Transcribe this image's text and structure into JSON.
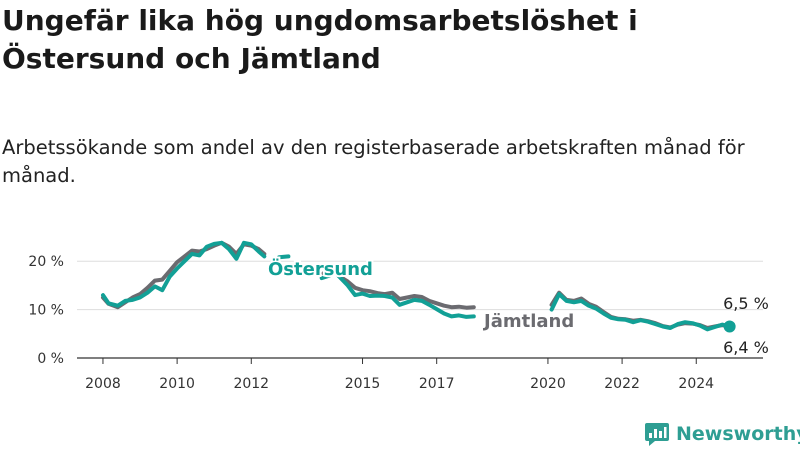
{
  "title": "Ungefär lika hög ungdomsarbetslöshet i Östersund och Jämtland",
  "subtitle": "Arbetssökande som andel av den registerbaserade arbetskraften månad för månad.",
  "brand": {
    "name": "Newsworthy"
  },
  "colors": {
    "ostersund": "#12a096",
    "jamtland": "#6b6b70",
    "grid": "#dddddd",
    "axis": "#333333",
    "brand": "#2e9e93"
  },
  "chart_data": {
    "type": "line",
    "title": "Ungefär lika hög ungdomsarbetslöshet i Östersund och Jämtland",
    "xlabel": "",
    "ylabel": "",
    "xlim": [
      2007.3,
      2025.8
    ],
    "ylim": [
      0,
      25
    ],
    "y_ticks": [
      {
        "value": 0,
        "label": "0 %"
      },
      {
        "value": 10,
        "label": "10 %"
      },
      {
        "value": 20,
        "label": "20 %"
      }
    ],
    "x_ticks": [
      {
        "value": 2008,
        "label": "2008"
      },
      {
        "value": 2010,
        "label": "2010"
      },
      {
        "value": 2012,
        "label": "2012"
      },
      {
        "value": 2015,
        "label": "2015"
      },
      {
        "value": 2017,
        "label": "2017"
      },
      {
        "value": 2020,
        "label": "2020"
      },
      {
        "value": 2022,
        "label": "2022"
      },
      {
        "value": 2024,
        "label": "2024"
      }
    ],
    "grid": "horizontal",
    "series": [
      {
        "name": "Jämtland",
        "label": "Jämtland",
        "segments": [
          [
            [
              2008.0,
              12.5
            ],
            [
              2008.15,
              11.2
            ],
            [
              2008.4,
              10.5
            ],
            [
              2008.6,
              11.5
            ],
            [
              2008.8,
              12.5
            ],
            [
              2009.0,
              13.2
            ],
            [
              2009.2,
              14.5
            ],
            [
              2009.4,
              16.0
            ],
            [
              2009.6,
              16.2
            ],
            [
              2009.8,
              18.0
            ],
            [
              2010.0,
              19.8
            ],
            [
              2010.2,
              21.0
            ],
            [
              2010.4,
              22.2
            ],
            [
              2010.6,
              22.0
            ],
            [
              2010.8,
              22.5
            ],
            [
              2011.0,
              23.2
            ],
            [
              2011.2,
              23.8
            ],
            [
              2011.4,
              23.0
            ],
            [
              2011.6,
              21.5
            ],
            [
              2011.8,
              23.5
            ],
            [
              2012.0,
              23.2
            ],
            [
              2012.2,
              22.5
            ],
            [
              2012.35,
              21.5
            ]
          ],
          [
            [
              2013.95,
              17.5
            ],
            [
              2014.2,
              17.6
            ]
          ],
          [
            [
              2014.35,
              17.0
            ],
            [
              2014.6,
              15.8
            ],
            [
              2014.8,
              14.5
            ],
            [
              2015.0,
              14.0
            ],
            [
              2015.2,
              13.8
            ],
            [
              2015.4,
              13.4
            ],
            [
              2015.6,
              13.2
            ],
            [
              2015.8,
              13.5
            ],
            [
              2016.0,
              12.2
            ],
            [
              2016.2,
              12.5
            ],
            [
              2016.4,
              12.8
            ],
            [
              2016.6,
              12.6
            ],
            [
              2016.8,
              11.8
            ],
            [
              2017.0,
              11.3
            ],
            [
              2017.2,
              10.8
            ],
            [
              2017.4,
              10.5
            ],
            [
              2017.6,
              10.6
            ],
            [
              2017.8,
              10.4
            ],
            [
              2018.0,
              10.5
            ]
          ],
          [
            [
              2020.1,
              11.0
            ],
            [
              2020.3,
              13.5
            ],
            [
              2020.5,
              12.0
            ],
            [
              2020.7,
              11.8
            ],
            [
              2020.9,
              12.3
            ],
            [
              2021.1,
              11.2
            ],
            [
              2021.3,
              10.6
            ],
            [
              2021.5,
              9.5
            ],
            [
              2021.7,
              8.5
            ],
            [
              2021.9,
              8.1
            ],
            [
              2022.1,
              8.0
            ],
            [
              2022.3,
              7.7
            ],
            [
              2022.5,
              7.9
            ],
            [
              2022.7,
              7.6
            ],
            [
              2022.9,
              7.2
            ],
            [
              2023.1,
              6.6
            ],
            [
              2023.3,
              6.3
            ],
            [
              2023.5,
              6.9
            ],
            [
              2023.7,
              7.2
            ],
            [
              2023.9,
              7.1
            ],
            [
              2024.1,
              6.8
            ],
            [
              2024.3,
              6.2
            ],
            [
              2024.5,
              6.5
            ],
            [
              2024.7,
              6.8
            ],
            [
              2024.9,
              6.4
            ]
          ]
        ]
      },
      {
        "name": "Östersund",
        "label": "Östersund",
        "segments": [
          [
            [
              2008.0,
              13.0
            ],
            [
              2008.15,
              11.3
            ],
            [
              2008.4,
              10.8
            ],
            [
              2008.6,
              11.8
            ],
            [
              2008.8,
              12.0
            ],
            [
              2009.0,
              12.5
            ],
            [
              2009.2,
              13.5
            ],
            [
              2009.4,
              14.8
            ],
            [
              2009.6,
              14.0
            ],
            [
              2009.8,
              16.8
            ],
            [
              2010.0,
              18.5
            ],
            [
              2010.2,
              20.0
            ],
            [
              2010.4,
              21.5
            ],
            [
              2010.6,
              21.2
            ],
            [
              2010.8,
              23.0
            ],
            [
              2011.0,
              23.6
            ],
            [
              2011.2,
              23.8
            ],
            [
              2011.4,
              22.5
            ],
            [
              2011.6,
              20.5
            ],
            [
              2011.8,
              23.8
            ],
            [
              2012.0,
              23.5
            ],
            [
              2012.2,
              22.0
            ],
            [
              2012.35,
              21.0
            ]
          ],
          [
            [
              2012.75,
              20.8
            ],
            [
              2013.0,
              21.0
            ]
          ],
          [
            [
              2013.9,
              16.5
            ],
            [
              2014.1,
              17.0
            ]
          ],
          [
            [
              2014.35,
              17.0
            ],
            [
              2014.6,
              15.0
            ],
            [
              2014.8,
              13.0
            ],
            [
              2015.0,
              13.3
            ],
            [
              2015.2,
              12.8
            ],
            [
              2015.4,
              12.9
            ],
            [
              2015.6,
              12.8
            ],
            [
              2015.8,
              12.5
            ],
            [
              2016.0,
              11.0
            ],
            [
              2016.2,
              11.5
            ],
            [
              2016.4,
              12.0
            ],
            [
              2016.6,
              11.8
            ],
            [
              2016.8,
              11.0
            ],
            [
              2017.0,
              10.1
            ],
            [
              2017.2,
              9.2
            ],
            [
              2017.4,
              8.6
            ],
            [
              2017.6,
              8.8
            ],
            [
              2017.8,
              8.5
            ],
            [
              2018.0,
              8.6
            ]
          ],
          [
            [
              2020.1,
              10.0
            ],
            [
              2020.3,
              13.2
            ],
            [
              2020.5,
              11.8
            ],
            [
              2020.7,
              11.5
            ],
            [
              2020.9,
              11.8
            ],
            [
              2021.1,
              10.8
            ],
            [
              2021.3,
              10.2
            ],
            [
              2021.5,
              9.2
            ],
            [
              2021.7,
              8.3
            ],
            [
              2021.9,
              8.0
            ],
            [
              2022.1,
              7.9
            ],
            [
              2022.3,
              7.4
            ],
            [
              2022.5,
              7.8
            ],
            [
              2022.7,
              7.5
            ],
            [
              2022.9,
              7.0
            ],
            [
              2023.1,
              6.5
            ],
            [
              2023.3,
              6.2
            ],
            [
              2023.5,
              7.0
            ],
            [
              2023.7,
              7.4
            ],
            [
              2023.9,
              7.2
            ],
            [
              2024.1,
              6.7
            ],
            [
              2024.3,
              5.9
            ],
            [
              2024.5,
              6.4
            ],
            [
              2024.7,
              6.9
            ],
            [
              2024.9,
              6.5
            ]
          ]
        ]
      }
    ],
    "annotations": [
      {
        "text": "6,5 %",
        "series": "Östersund",
        "x": 2024.9,
        "y": 6.5
      },
      {
        "text": "6,4 %",
        "series": "Jämtland",
        "x": 2024.9,
        "y": 6.4
      }
    ],
    "legend": "inline labels"
  }
}
